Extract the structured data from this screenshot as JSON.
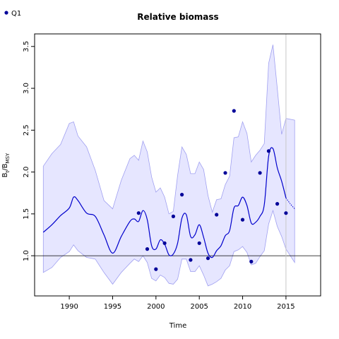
{
  "chart_data": {
    "type": "line",
    "title": "Relative biomass",
    "xlabel": "Time",
    "ylabel": {
      "main": "B",
      "sub1": "t",
      "mid": "/B",
      "sub2": "MSY"
    },
    "xlim": [
      1986,
      2019
    ],
    "ylim": [
      0.52,
      3.65
    ],
    "xticks": [
      1990,
      1995,
      2000,
      2005,
      2010,
      2015
    ],
    "yticks": [
      1.0,
      1.5,
      2.0,
      2.5,
      3.0,
      3.5
    ],
    "ytick_labels": [
      "1.0",
      "1.5",
      "2.0",
      "2.5",
      "3.0",
      "3.5"
    ],
    "reference_line_y": 1.0,
    "vertical_line_x": 2015,
    "legend": {
      "position": "top-left",
      "label": "Q1"
    },
    "colors": {
      "line": "#0000cc",
      "band_fill": "#e6e6ff",
      "band_stroke": "#a0a0f0",
      "points": "#000099",
      "vline": "#c8c8c8"
    },
    "observations": {
      "name": "Q1",
      "x": [
        1998,
        1999,
        2000,
        2001,
        2002,
        2003,
        2004,
        2005,
        2006,
        2007,
        2008,
        2009,
        2010,
        2011,
        2012,
        2013,
        2014,
        2015
      ],
      "y": [
        1.51,
        1.08,
        0.84,
        1.15,
        1.47,
        1.73,
        0.95,
        1.15,
        0.97,
        1.49,
        1.99,
        2.73,
        1.43,
        0.93,
        1.99,
        2.25,
        1.62,
        1.51
      ]
    },
    "estimate": {
      "x": [
        1987,
        1988,
        1989,
        1990,
        1990.5,
        1991,
        1992,
        1993,
        1994,
        1995,
        1996,
        1997,
        1997.5,
        1998,
        1998.5,
        1999,
        1999.5,
        2000,
        2000.5,
        2001,
        2001.5,
        2002,
        2002.5,
        2003,
        2003.5,
        2004,
        2004.5,
        2005,
        2005.5,
        2006,
        2006.5,
        2007,
        2007.5,
        2008,
        2008.5,
        2009,
        2009.5,
        2010,
        2010.5,
        2011,
        2011.5,
        2012,
        2012.5,
        2013,
        2013.5,
        2014,
        2014.5,
        2015
      ],
      "y": [
        1.28,
        1.37,
        1.48,
        1.57,
        1.7,
        1.66,
        1.51,
        1.47,
        1.25,
        1.03,
        1.23,
        1.41,
        1.44,
        1.41,
        1.54,
        1.43,
        1.12,
        1.08,
        1.19,
        1.14,
        1.01,
        1.02,
        1.15,
        1.45,
        1.49,
        1.23,
        1.25,
        1.37,
        1.22,
        1.03,
        0.98,
        1.06,
        1.12,
        1.24,
        1.3,
        1.57,
        1.6,
        1.7,
        1.6,
        1.39,
        1.4,
        1.47,
        1.61,
        2.19,
        2.28,
        2.05,
        1.89,
        1.69
      ]
    },
    "projection": {
      "x": [
        2015,
        2015.5,
        2016
      ],
      "y": [
        1.69,
        1.62,
        1.56
      ]
    },
    "band_upper": {
      "x": [
        1987,
        1988,
        1989,
        1990,
        1990.5,
        1991,
        1992,
        1993,
        1994,
        1995,
        1996,
        1997,
        1997.5,
        1998,
        1998.5,
        1999,
        1999.5,
        2000,
        2000.5,
        2001,
        2001.5,
        2002,
        2002.5,
        2003,
        2003.5,
        2004,
        2004.5,
        2005,
        2005.5,
        2006,
        2006.5,
        2007,
        2007.5,
        2008,
        2008.5,
        2009,
        2009.5,
        2010,
        2010.5,
        2011,
        2011.5,
        2012,
        2012.5,
        2013,
        2013.5,
        2014,
        2014.5,
        2015,
        2016
      ],
      "y": [
        2.07,
        2.22,
        2.33,
        2.58,
        2.6,
        2.43,
        2.3,
        2.02,
        1.66,
        1.56,
        1.9,
        2.16,
        2.2,
        2.14,
        2.37,
        2.24,
        1.94,
        1.76,
        1.81,
        1.7,
        1.5,
        1.53,
        1.96,
        2.3,
        2.21,
        1.98,
        1.98,
        2.12,
        2.03,
        1.72,
        1.52,
        1.67,
        1.68,
        1.85,
        1.95,
        2.41,
        2.42,
        2.6,
        2.46,
        2.12,
        2.2,
        2.26,
        2.34,
        3.3,
        3.52,
        3.0,
        2.45,
        2.64,
        2.62
      ]
    },
    "band_lower": {
      "x": [
        1987,
        1988,
        1989,
        1990,
        1990.5,
        1991,
        1992,
        1993,
        1994,
        1995,
        1996,
        1997,
        1997.5,
        1998,
        1998.5,
        1999,
        1999.5,
        2000,
        2000.5,
        2001,
        2001.5,
        2002,
        2002.5,
        2003,
        2003.5,
        2004,
        2004.5,
        2005,
        2005.5,
        2006,
        2006.5,
        2007,
        2007.5,
        2008,
        2008.5,
        2009,
        2009.5,
        2010,
        2010.5,
        2011,
        2011.5,
        2012,
        2012.5,
        2013,
        2013.5,
        2014,
        2014.5,
        2015,
        2016
      ],
      "y": [
        0.8,
        0.86,
        0.98,
        1.05,
        1.13,
        1.06,
        0.98,
        0.96,
        0.8,
        0.66,
        0.8,
        0.91,
        0.96,
        0.93,
        1.0,
        0.92,
        0.73,
        0.7,
        0.77,
        0.74,
        0.67,
        0.66,
        0.72,
        0.96,
        0.96,
        0.81,
        0.81,
        0.88,
        0.77,
        0.64,
        0.66,
        0.69,
        0.73,
        0.83,
        0.88,
        1.05,
        1.07,
        1.11,
        1.04,
        0.89,
        0.91,
        0.99,
        1.06,
        1.38,
        1.54,
        1.35,
        1.23,
        1.08,
        0.92
      ]
    }
  }
}
